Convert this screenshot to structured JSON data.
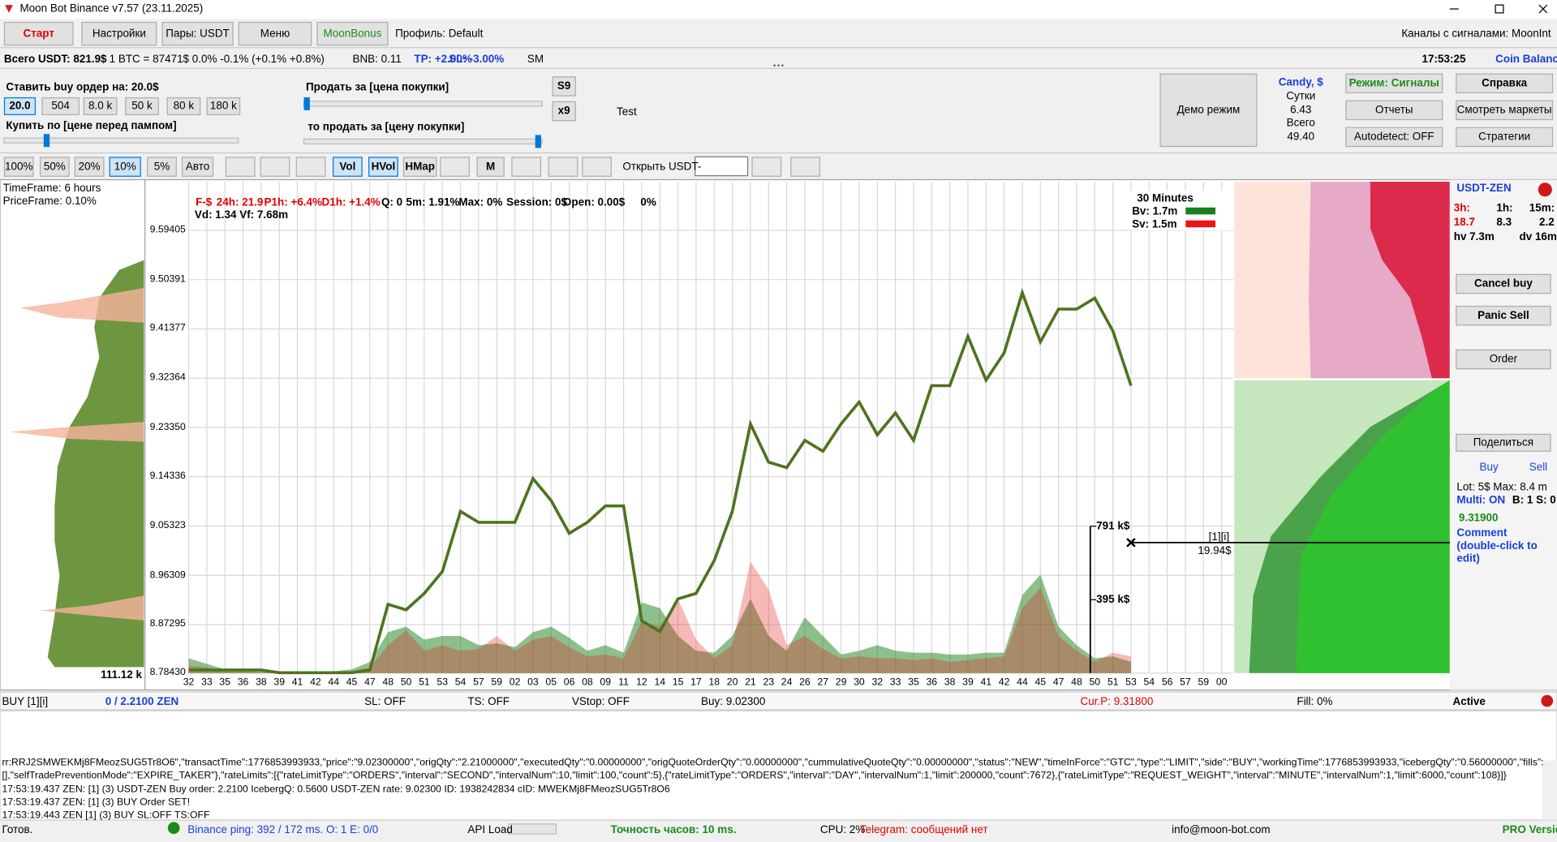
{
  "window": {
    "title": "Moon Bot Binance v7.57 (23.11.2025)"
  },
  "toolbar": {
    "start": "Старт",
    "settings": "Настройки",
    "pairs": "Пары: USDT",
    "menu": "Меню",
    "bonus": "MoonBonus",
    "profile": "Профиль: Default",
    "channels": "Каналы с сигналами: MoonInt"
  },
  "status": {
    "total": "Всего USDT: 821.9$",
    "btc": "1 BTC = 87471$  0.0% -0.1% (+0.1% +0.8%)",
    "bnb": "BNB: 0.11",
    "tp": "TP: +2.00%",
    "sl": "SL: -3.00%",
    "sm": "SM",
    "time": "17:53:25",
    "balance": "Coin Balance"
  },
  "buy_panel": {
    "order_label": "Ставить buy ордер на: 20.0$",
    "amounts": [
      "20.0",
      "504",
      "8.0 k",
      "50 k",
      "80 k",
      "180 k"
    ],
    "buy_at": "Купить по [цене перед пампом]",
    "sell_for": "Продать за [цена покупки]",
    "then_sell": "то продать за [цену покупки]",
    "s9": "S9",
    "x9": "x9",
    "test": "Test",
    "demo": "Демо режим",
    "candy": {
      "title": "Candy, $",
      "day": "Сутки",
      "day_value": "6.43",
      "total": "Всего",
      "total_value": "49.40"
    },
    "buttons": [
      "Режим: Сигналы",
      "Справка",
      "Отчеты",
      "Смотреть маркеты",
      "Autodetect: OFF",
      "Стратегии"
    ]
  },
  "toolbar2": {
    "percents": [
      "100%",
      "50%",
      "20%",
      "10%",
      "5%",
      "Авто"
    ],
    "views": [
      "Vol",
      "HVol",
      "HMap",
      "M"
    ],
    "open": "Открыть USDT-"
  },
  "profile": {
    "timeframe": "TimeFrame: 6 hours",
    "priceframe": "PriceFrame: 0.10%",
    "max": "111.12 k"
  },
  "chart_data": {
    "type": "line",
    "info": [
      "F-$",
      "24h: 21.9",
      "P1h: +6.4%",
      "D1h: +1.4%",
      "Q: 0",
      "5m: 1.91%",
      "Max: 0%",
      "Session: 0$",
      "Open: 0.00$",
      "0%"
    ],
    "info2": "Vd: 1.34 Vf: 7.68m",
    "legend_title": "30 Minutes",
    "categories": [
      "32",
      "33",
      "35",
      "36",
      "38",
      "39",
      "41",
      "42",
      "44",
      "45",
      "47",
      "48",
      "50",
      "51",
      "53",
      "54",
      "57",
      "59",
      "02",
      "03",
      "05",
      "06",
      "08",
      "09",
      "11",
      "12",
      "14",
      "15",
      "17",
      "18",
      "20",
      "21",
      "23",
      "24",
      "26",
      "27",
      "29",
      "30",
      "32",
      "33",
      "35",
      "36",
      "38",
      "39",
      "41",
      "42",
      "44",
      "45",
      "47",
      "48",
      "50",
      "51",
      "53",
      "54",
      "56",
      "57",
      "59",
      "00"
    ],
    "color": "#2a8a1f",
    "values": [
      8.79,
      8.79,
      8.79,
      8.79,
      8.79,
      8.785,
      8.785,
      8.785,
      8.785,
      8.785,
      8.79,
      8.91,
      8.9,
      8.93,
      8.97,
      9.08,
      9.06,
      9.06,
      9.06,
      9.14,
      9.1,
      9.04,
      9.06,
      9.09,
      9.09,
      8.88,
      8.86,
      8.92,
      8.93,
      8.99,
      9.08,
      9.24,
      9.17,
      9.16,
      9.21,
      9.19,
      9.24,
      9.28,
      9.22,
      9.26,
      9.21,
      9.31,
      9.31,
      9.4,
      9.32,
      9.37,
      9.48,
      9.39,
      9.45,
      9.45,
      9.47,
      9.41,
      9.31,
      null,
      null,
      null,
      null,
      null
    ],
    "series": [
      {
        "name": "Bv: 1.7m",
        "color": "#1b7f1b",
        "axis": "y2",
        "values": [
          80,
          50,
          20,
          15,
          10,
          10,
          10,
          10,
          10,
          20,
          60,
          220,
          250,
          180,
          200,
          200,
          150,
          160,
          140,
          220,
          250,
          190,
          120,
          150,
          110,
          380,
          350,
          200,
          120,
          110,
          200,
          400,
          200,
          120,
          300,
          200,
          100,
          120,
          150,
          120,
          110,
          110,
          100,
          100,
          110,
          110,
          420,
          530,
          250,
          150,
          80,
          90,
          60,
          null,
          null,
          null,
          null,
          null
        ]
      },
      {
        "name": "Sv: 1.5m",
        "color": "#e81818",
        "axis": "y2",
        "values": [
          40,
          30,
          10,
          10,
          5,
          5,
          5,
          5,
          5,
          10,
          30,
          150,
          230,
          120,
          150,
          120,
          130,
          200,
          120,
          180,
          200,
          140,
          90,
          100,
          80,
          280,
          250,
          400,
          180,
          80,
          150,
          600,
          450,
          150,
          200,
          130,
          80,
          90,
          80,
          80,
          70,
          80,
          60,
          70,
          80,
          90,
          350,
          460,
          200,
          120,
          60,
          110,
          90,
          null,
          null,
          null,
          null,
          null
        ]
      }
    ],
    "ylim": [
      8.7843,
      9.683
    ],
    "yticks": [
      9.59405,
      9.50391,
      9.41377,
      9.32364,
      {
        "value": 9.2335,
        "label": "9.23350"
      },
      9.14336,
      9.05323,
      8.96309,
      8.87295,
      {
        "value": 8.7843,
        "label": "8.78430"
      }
    ],
    "y2lim": [
      0,
      2646
    ],
    "y2ticks": [
      {
        "value": 791,
        "label": "791 k$"
      },
      {
        "value": 395,
        "label": "395 k$"
      }
    ],
    "grid": true,
    "order_price": 9.023,
    "position_label": "[1][i]",
    "position_value": "19.94$"
  },
  "right_panel": {
    "pair": "USDT-ZEN",
    "h3": "3h:",
    "h1": "1h:",
    "m15": "15m:",
    "h3_value": "18.7",
    "h1_value": "8.3",
    "m15_value": "2.2",
    "hv": "hv 7.3m",
    "dv": "dv 16m",
    "cancel": "Cancel buy",
    "panic": "Panic Sell",
    "order": "Order",
    "share": "Поделиться",
    "buy": "Buy",
    "sell": "Sell",
    "lot": "Lot: 5$  Max: 8.4 m",
    "multi": "Multi: ON",
    "bs": "B: 1  S: 0",
    "price": "9.31900",
    "comment": "Comment (double-click to edit)"
  },
  "order_row": [
    "BUY [1][i]",
    "0 / 2.2100 ZEN",
    "SL: OFF",
    "TS: OFF",
    "VStop: OFF",
    "Buy: 9.02300",
    "Cur.P: 9.31800",
    "Fill: 0%",
    "Active"
  ],
  "log": [
    "rr:RRJ2SMWEKMj8FMeozSUG5Tr8O6\",\"transactTime\":1776853993933,\"price\":\"9.02300000\",\"origQty\":\"2.21000000\",\"executedQty\":\"0.00000000\",\"origQuoteOrderQty\":\"0.00000000\",\"cummulativeQuoteQty\":\"0.00000000\",\"status\":\"NEW\",\"timeInForce\":\"GTC\",\"type\":\"LIMIT\",\"side\":\"BUY\",\"workingTime\":1776853993933,\"icebergQty\":\"0.56000000\",\"fills\":",
    "[],\"selfTradePreventionMode\":\"EXPIRE_TAKER\"},\"rateLimits\":[{\"rateLimitType\":\"ORDERS\",\"interval\":\"SECOND\",\"intervalNum\":10,\"limit\":100,\"count\":5},{\"rateLimitType\":\"ORDERS\",\"interval\":\"DAY\",\"intervalNum\":1,\"limit\":200000,\"count\":7672},{\"rateLimitType\":\"REQUEST_WEIGHT\",\"interval\":\"MINUTE\",\"intervalNum\":1,\"limit\":6000,\"count\":108}]}",
    "17:53:19.437  ZEN: [1] (3) USDT-ZEN Buy order: 2.2100 IcebergQ: 0.5600 USDT-ZEN rate: 9.02300  ID: 1938242834 cID: MWEKMj8FMeozSUG5Tr8O6",
    "17:53:19.437  ZEN: [1] (3) BUY Order SET!",
    "17:53:19.443  ZEN [1]  (3) BUY   SL:OFF  TS:OFF"
  ],
  "statusbar": [
    "Готов.",
    "Binance ping: 392 / 172 ms.  O: 1  E: 0/0",
    "API Load",
    "Точность часов: 10 ms.",
    "CPU: 2%",
    "Telegram: сообщений нет",
    "info@moon-bot.com",
    "PRO Version"
  ]
}
